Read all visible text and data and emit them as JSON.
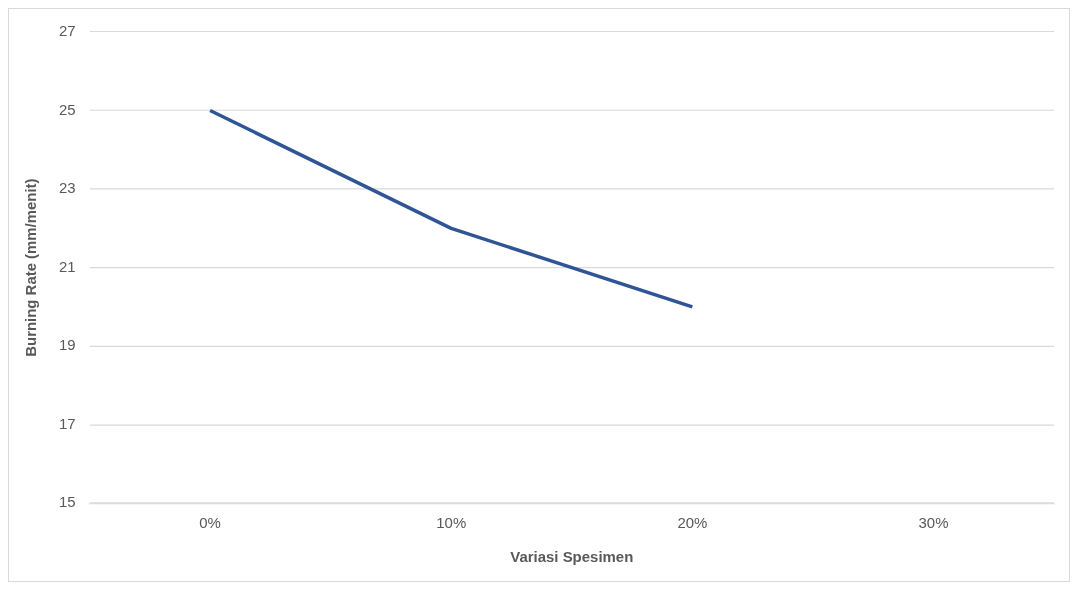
{
  "chart_data": {
    "type": "line",
    "xlabel": "Variasi Spesimen",
    "ylabel": "Burning Rate (mm/menit)",
    "categories": [
      "0%",
      "10%",
      "20%",
      "30%"
    ],
    "series": [
      {
        "color": "#2f5597",
        "values": [
          25,
          22,
          20,
          null
        ]
      }
    ],
    "ylim": [
      15,
      27
    ],
    "yticks": [
      15,
      17,
      19,
      21,
      23,
      25,
      27
    ],
    "grid": "y",
    "legend": false,
    "marker": "none",
    "line_style": "solid"
  }
}
